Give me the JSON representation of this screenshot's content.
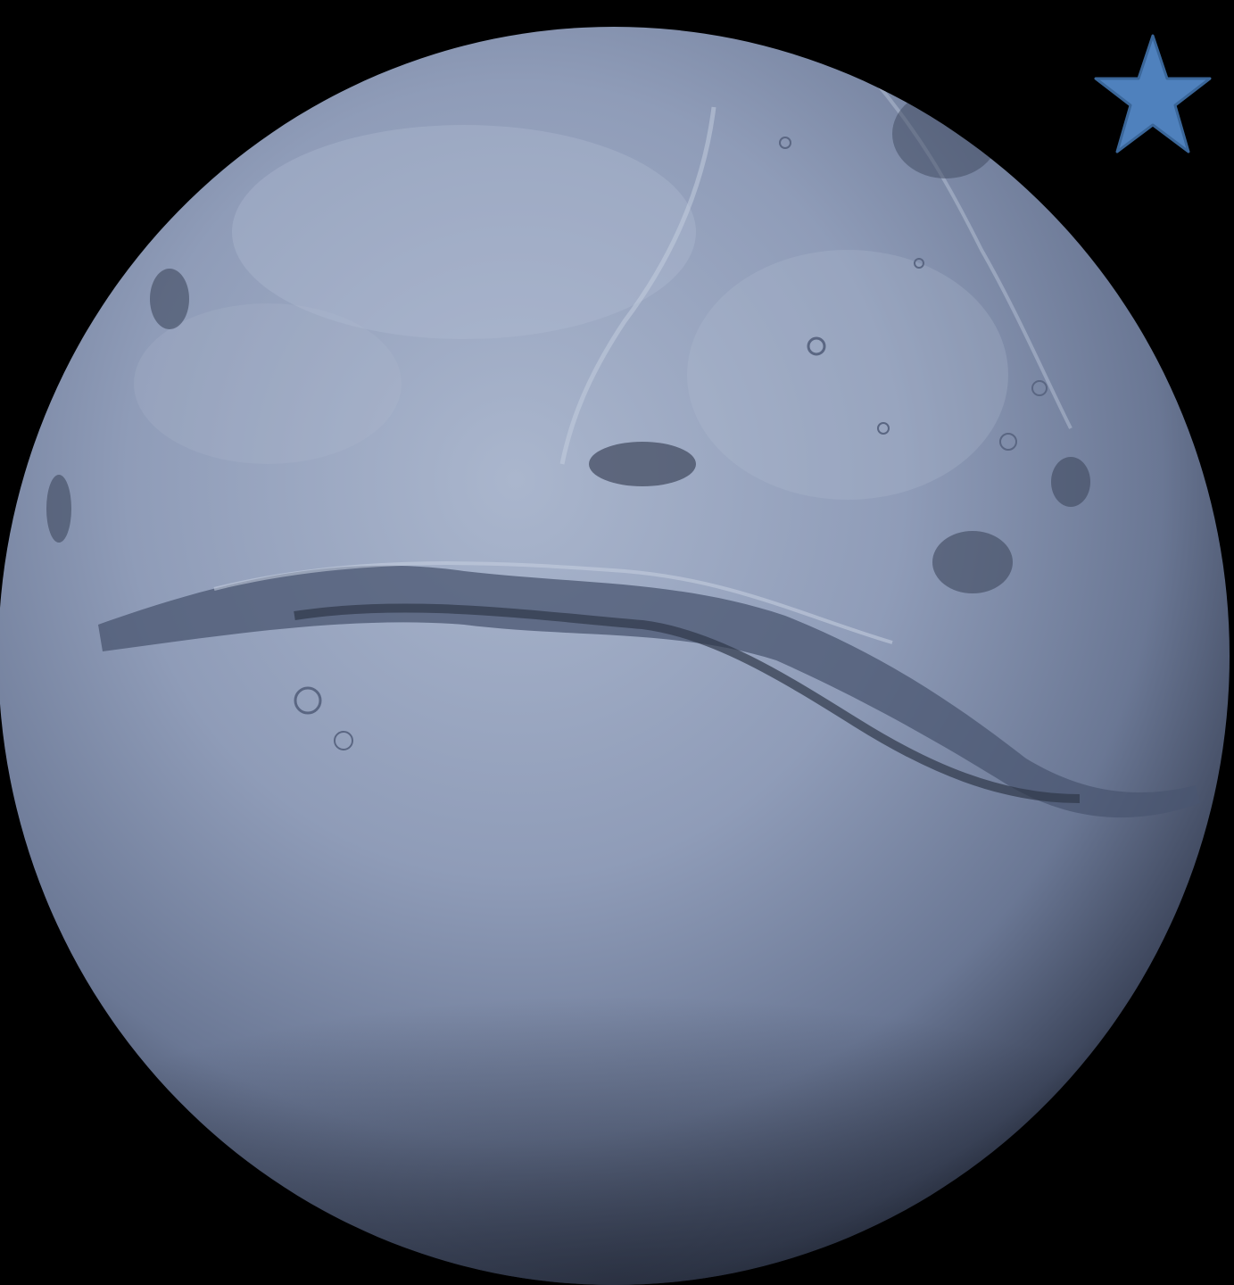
{
  "scene": {
    "background_color": "#000000",
    "planet": {
      "name": "planet-globe",
      "surface_feature": "canyon-system",
      "tint_light": "#aab6cd",
      "tint_mid": "#8190ad",
      "tint_dark": "#4a5570",
      "limb_shadow": "#1a1f2b"
    },
    "star": {
      "icon": "star-icon",
      "fill_color": "#4f81bd",
      "stroke_color": "#3a6699"
    }
  }
}
